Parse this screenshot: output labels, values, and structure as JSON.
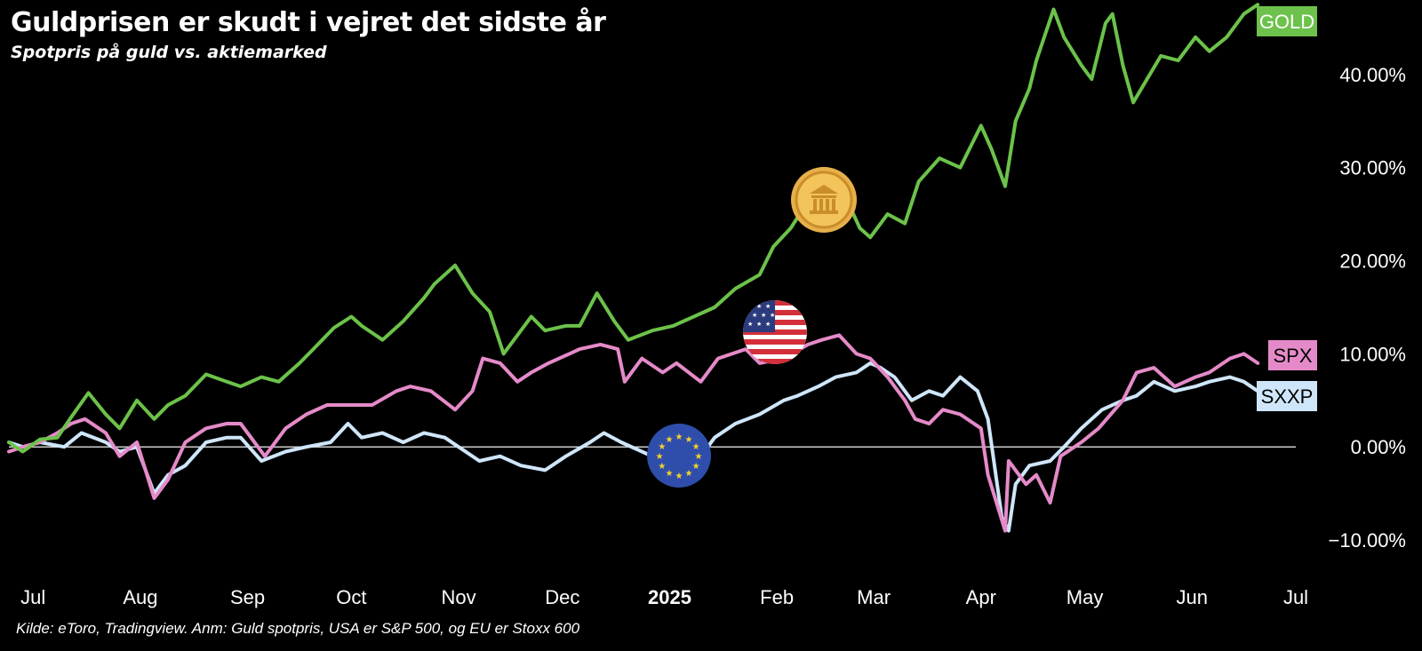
{
  "header": {
    "title": "Guldprisen er skudt i vejret det sidste år",
    "subtitle": "Spotpris på guld vs. aktiemarked"
  },
  "footer": {
    "source": "Kilde: eToro, Tradingview. Anm: Guld spotpris, USA er S&P 500, og EU er Stoxx 600"
  },
  "colors": {
    "background": "#000000",
    "gold": "#6cc24a",
    "spx": "#e58ac9",
    "sxxp": "#cfe6fa",
    "zero_line": "#cccccc"
  },
  "icons": {
    "gold_icon": "bank-coin-icon",
    "us_icon": "us-flag-icon",
    "eu_icon": "eu-flag-icon"
  },
  "chart_data": {
    "type": "line",
    "title": "Guldprisen er skudt i vejret det sidste år",
    "subtitle": "Spotpris på guld vs. aktiemarked",
    "xlabel": "",
    "ylabel": "",
    "y_unit": "%",
    "ylim": [
      -14,
      48
    ],
    "xlim": [
      "2024-06-24",
      "2025-07-01"
    ],
    "y_ticks": [
      {
        "value": -10,
        "label": "−10.00%"
      },
      {
        "value": 0,
        "label": "0.00%"
      },
      {
        "value": 10,
        "label": "10.00%"
      },
      {
        "value": 20,
        "label": "20.00%"
      },
      {
        "value": 30,
        "label": "30.00%"
      },
      {
        "value": 40,
        "label": "40.00%"
      }
    ],
    "x_ticks": [
      {
        "date": "2024-07-01",
        "label": "Jul"
      },
      {
        "date": "2024-08-01",
        "label": "Aug"
      },
      {
        "date": "2024-09-01",
        "label": "Sep"
      },
      {
        "date": "2024-10-01",
        "label": "Oct"
      },
      {
        "date": "2024-11-01",
        "label": "Nov"
      },
      {
        "date": "2024-12-01",
        "label": "Dec"
      },
      {
        "date": "2025-01-01",
        "label": "2025",
        "bold": true
      },
      {
        "date": "2025-02-01",
        "label": "Feb"
      },
      {
        "date": "2025-03-01",
        "label": "Mar"
      },
      {
        "date": "2025-04-01",
        "label": "Apr"
      },
      {
        "date": "2025-05-01",
        "label": "May"
      },
      {
        "date": "2025-06-01",
        "label": "Jun"
      },
      {
        "date": "2025-07-01",
        "label": "Jul"
      }
    ],
    "grid": false,
    "zero_line": true,
    "legend": "end-of-line labels on right",
    "series": [
      {
        "name": "GOLD",
        "color": "#6cc24a",
        "points": [
          [
            "2024-06-24",
            0.5
          ],
          [
            "2024-06-28",
            -0.5
          ],
          [
            "2024-07-03",
            0.8
          ],
          [
            "2024-07-08",
            1.0
          ],
          [
            "2024-07-12",
            3.2
          ],
          [
            "2024-07-17",
            5.8
          ],
          [
            "2024-07-22",
            3.5
          ],
          [
            "2024-07-26",
            2.0
          ],
          [
            "2024-07-31",
            5.0
          ],
          [
            "2024-08-05",
            3.0
          ],
          [
            "2024-08-09",
            4.5
          ],
          [
            "2024-08-14",
            5.5
          ],
          [
            "2024-08-20",
            7.8
          ],
          [
            "2024-08-26",
            7.0
          ],
          [
            "2024-08-30",
            6.5
          ],
          [
            "2024-09-05",
            7.5
          ],
          [
            "2024-09-10",
            7.0
          ],
          [
            "2024-09-16",
            9.0
          ],
          [
            "2024-09-20",
            10.5
          ],
          [
            "2024-09-26",
            12.8
          ],
          [
            "2024-10-01",
            14.0
          ],
          [
            "2024-10-04",
            13.0
          ],
          [
            "2024-10-10",
            11.5
          ],
          [
            "2024-10-16",
            13.5
          ],
          [
            "2024-10-22",
            16.0
          ],
          [
            "2024-10-25",
            17.5
          ],
          [
            "2024-10-31",
            19.5
          ],
          [
            "2024-11-05",
            16.5
          ],
          [
            "2024-11-10",
            14.5
          ],
          [
            "2024-11-14",
            10.0
          ],
          [
            "2024-11-18",
            12.0
          ],
          [
            "2024-11-22",
            14.0
          ],
          [
            "2024-11-26",
            12.5
          ],
          [
            "2024-12-02",
            13.0
          ],
          [
            "2024-12-06",
            13.0
          ],
          [
            "2024-12-11",
            16.5
          ],
          [
            "2024-12-16",
            13.5
          ],
          [
            "2024-12-20",
            11.5
          ],
          [
            "2024-12-27",
            12.5
          ],
          [
            "2025-01-02",
            13.0
          ],
          [
            "2025-01-08",
            14.0
          ],
          [
            "2025-01-14",
            15.0
          ],
          [
            "2025-01-20",
            17.0
          ],
          [
            "2025-01-27",
            18.5
          ],
          [
            "2025-01-31",
            21.5
          ],
          [
            "2025-02-05",
            23.5
          ],
          [
            "2025-02-11",
            27.0
          ],
          [
            "2025-02-14",
            25.5
          ],
          [
            "2025-02-20",
            27.5
          ],
          [
            "2025-02-25",
            23.5
          ],
          [
            "2025-02-28",
            22.5
          ],
          [
            "2025-03-05",
            25.0
          ],
          [
            "2025-03-10",
            24.0
          ],
          [
            "2025-03-14",
            28.5
          ],
          [
            "2025-03-20",
            31.0
          ],
          [
            "2025-03-26",
            30.0
          ],
          [
            "2025-04-01",
            34.5
          ],
          [
            "2025-04-04",
            32.0
          ],
          [
            "2025-04-08",
            28.0
          ],
          [
            "2025-04-11",
            35.0
          ],
          [
            "2025-04-15",
            38.5
          ],
          [
            "2025-04-17",
            41.5
          ],
          [
            "2025-04-22",
            47.0
          ],
          [
            "2025-04-25",
            44.0
          ],
          [
            "2025-04-30",
            41.0
          ],
          [
            "2025-05-03",
            39.5
          ],
          [
            "2025-05-07",
            45.5
          ],
          [
            "2025-05-09",
            46.5
          ],
          [
            "2025-05-12",
            41.0
          ],
          [
            "2025-05-15",
            37.0
          ],
          [
            "2025-05-19",
            39.5
          ],
          [
            "2025-05-23",
            42.0
          ],
          [
            "2025-05-28",
            41.5
          ],
          [
            "2025-06-02",
            44.0
          ],
          [
            "2025-06-06",
            42.5
          ],
          [
            "2025-06-11",
            44.0
          ],
          [
            "2025-06-16",
            46.5
          ],
          [
            "2025-06-20",
            47.5
          ]
        ]
      },
      {
        "name": "SPX",
        "color": "#e58ac9",
        "points": [
          [
            "2024-06-24",
            -0.5
          ],
          [
            "2024-06-28",
            0.0
          ],
          [
            "2024-07-03",
            0.5
          ],
          [
            "2024-07-08",
            1.5
          ],
          [
            "2024-07-12",
            2.5
          ],
          [
            "2024-07-16",
            3.0
          ],
          [
            "2024-07-22",
            1.5
          ],
          [
            "2024-07-26",
            -1.0
          ],
          [
            "2024-07-31",
            0.5
          ],
          [
            "2024-08-05",
            -5.5
          ],
          [
            "2024-08-09",
            -3.5
          ],
          [
            "2024-08-14",
            0.5
          ],
          [
            "2024-08-20",
            2.0
          ],
          [
            "2024-08-26",
            2.5
          ],
          [
            "2024-08-30",
            2.5
          ],
          [
            "2024-09-06",
            -1.0
          ],
          [
            "2024-09-12",
            2.0
          ],
          [
            "2024-09-18",
            3.5
          ],
          [
            "2024-09-24",
            4.5
          ],
          [
            "2024-10-01",
            4.5
          ],
          [
            "2024-10-07",
            4.5
          ],
          [
            "2024-10-14",
            6.0
          ],
          [
            "2024-10-18",
            6.5
          ],
          [
            "2024-10-24",
            6.0
          ],
          [
            "2024-10-31",
            4.0
          ],
          [
            "2024-11-05",
            6.0
          ],
          [
            "2024-11-08",
            9.5
          ],
          [
            "2024-11-13",
            9.0
          ],
          [
            "2024-11-18",
            7.0
          ],
          [
            "2024-11-22",
            8.0
          ],
          [
            "2024-11-27",
            9.0
          ],
          [
            "2024-12-03",
            10.0
          ],
          [
            "2024-12-06",
            10.5
          ],
          [
            "2024-12-12",
            11.0
          ],
          [
            "2024-12-17",
            10.5
          ],
          [
            "2024-12-19",
            7.0
          ],
          [
            "2024-12-24",
            9.5
          ],
          [
            "2024-12-30",
            8.0
          ],
          [
            "2025-01-03",
            9.0
          ],
          [
            "2025-01-10",
            7.0
          ],
          [
            "2025-01-15",
            9.5
          ],
          [
            "2025-01-23",
            10.5
          ],
          [
            "2025-01-27",
            9.0
          ],
          [
            "2025-02-03",
            9.5
          ],
          [
            "2025-02-10",
            11.0
          ],
          [
            "2025-02-14",
            11.5
          ],
          [
            "2025-02-19",
            12.0
          ],
          [
            "2025-02-24",
            10.0
          ],
          [
            "2025-02-28",
            9.5
          ],
          [
            "2025-03-05",
            7.5
          ],
          [
            "2025-03-10",
            5.0
          ],
          [
            "2025-03-13",
            3.0
          ],
          [
            "2025-03-17",
            2.5
          ],
          [
            "2025-03-21",
            4.0
          ],
          [
            "2025-03-26",
            3.5
          ],
          [
            "2025-04-01",
            2.0
          ],
          [
            "2025-04-03",
            -3.0
          ],
          [
            "2025-04-08",
            -9.0
          ],
          [
            "2025-04-09",
            -1.5
          ],
          [
            "2025-04-14",
            -4.0
          ],
          [
            "2025-04-17",
            -3.0
          ],
          [
            "2025-04-21",
            -6.0
          ],
          [
            "2025-04-24",
            -1.0
          ],
          [
            "2025-04-30",
            0.5
          ],
          [
            "2025-05-05",
            2.0
          ],
          [
            "2025-05-12",
            5.0
          ],
          [
            "2025-05-16",
            8.0
          ],
          [
            "2025-05-21",
            8.5
          ],
          [
            "2025-05-27",
            6.5
          ],
          [
            "2025-06-02",
            7.5
          ],
          [
            "2025-06-06",
            8.0
          ],
          [
            "2025-06-12",
            9.5
          ],
          [
            "2025-06-16",
            10.0
          ],
          [
            "2025-06-20",
            9.0
          ]
        ]
      },
      {
        "name": "SXXP",
        "color": "#cfe6fa",
        "points": [
          [
            "2024-06-24",
            0.5
          ],
          [
            "2024-06-28",
            0.0
          ],
          [
            "2024-07-03",
            0.5
          ],
          [
            "2024-07-10",
            0.0
          ],
          [
            "2024-07-15",
            1.5
          ],
          [
            "2024-07-22",
            0.5
          ],
          [
            "2024-07-26",
            -0.5
          ],
          [
            "2024-07-31",
            0.0
          ],
          [
            "2024-08-05",
            -5.0
          ],
          [
            "2024-08-09",
            -3.0
          ],
          [
            "2024-08-14",
            -2.0
          ],
          [
            "2024-08-20",
            0.5
          ],
          [
            "2024-08-26",
            1.0
          ],
          [
            "2024-08-30",
            1.0
          ],
          [
            "2024-09-05",
            -1.5
          ],
          [
            "2024-09-12",
            -0.5
          ],
          [
            "2024-09-18",
            0.0
          ],
          [
            "2024-09-25",
            0.5
          ],
          [
            "2024-09-30",
            2.5
          ],
          [
            "2024-10-04",
            1.0
          ],
          [
            "2024-10-10",
            1.5
          ],
          [
            "2024-10-16",
            0.5
          ],
          [
            "2024-10-22",
            1.5
          ],
          [
            "2024-10-28",
            1.0
          ],
          [
            "2024-11-01",
            0.0
          ],
          [
            "2024-11-07",
            -1.5
          ],
          [
            "2024-11-13",
            -1.0
          ],
          [
            "2024-11-19",
            -2.0
          ],
          [
            "2024-11-26",
            -2.5
          ],
          [
            "2024-12-02",
            -1.0
          ],
          [
            "2024-12-09",
            0.5
          ],
          [
            "2024-12-13",
            1.5
          ],
          [
            "2024-12-18",
            0.5
          ],
          [
            "2024-12-24",
            -0.5
          ],
          [
            "2024-12-30",
            -1.5
          ],
          [
            "2025-01-03",
            -1.0
          ],
          [
            "2025-01-09",
            -1.5
          ],
          [
            "2025-01-14",
            1.0
          ],
          [
            "2025-01-20",
            2.5
          ],
          [
            "2025-01-27",
            3.5
          ],
          [
            "2025-02-03",
            5.0
          ],
          [
            "2025-02-07",
            5.5
          ],
          [
            "2025-02-13",
            6.5
          ],
          [
            "2025-02-18",
            7.5
          ],
          [
            "2025-02-24",
            8.0
          ],
          [
            "2025-02-28",
            9.0
          ],
          [
            "2025-03-03",
            8.5
          ],
          [
            "2025-03-07",
            7.5
          ],
          [
            "2025-03-12",
            5.0
          ],
          [
            "2025-03-17",
            6.0
          ],
          [
            "2025-03-21",
            5.5
          ],
          [
            "2025-03-26",
            7.5
          ],
          [
            "2025-03-31",
            6.0
          ],
          [
            "2025-04-03",
            3.0
          ],
          [
            "2025-04-07",
            -7.5
          ],
          [
            "2025-04-09",
            -9.0
          ],
          [
            "2025-04-11",
            -4.0
          ],
          [
            "2025-04-15",
            -2.0
          ],
          [
            "2025-04-21",
            -1.5
          ],
          [
            "2025-04-25",
            0.0
          ],
          [
            "2025-04-30",
            2.0
          ],
          [
            "2025-05-06",
            4.0
          ],
          [
            "2025-05-12",
            5.0
          ],
          [
            "2025-05-16",
            5.5
          ],
          [
            "2025-05-21",
            7.0
          ],
          [
            "2025-05-27",
            6.0
          ],
          [
            "2025-06-02",
            6.5
          ],
          [
            "2025-06-06",
            7.0
          ],
          [
            "2025-06-12",
            7.5
          ],
          [
            "2025-06-16",
            7.0
          ],
          [
            "2025-06-20",
            6.0
          ]
        ]
      }
    ]
  }
}
